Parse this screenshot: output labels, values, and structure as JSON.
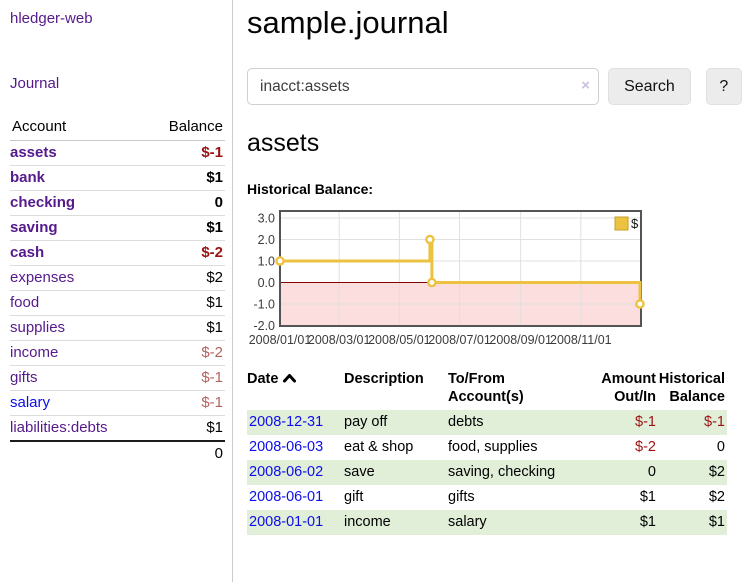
{
  "colors": {
    "link_purple": "#551a8b",
    "link_blue": "#0d0deb",
    "negative_strong": "#9c1212",
    "negative_muted": "#b56060",
    "row_stripe_green": "#e1efd9",
    "series_gold": "#edc240",
    "negative_region_pink": "#fcdede",
    "zero_line_red": "#800000",
    "chart_border": "#545454"
  },
  "sidebar": {
    "app_title": "hledger-web",
    "journal_link": "Journal",
    "accounts_table": {
      "headers": {
        "account": "Account",
        "balance": "Balance"
      },
      "rows": [
        {
          "name": "assets",
          "balance": "$-1",
          "depth": 1,
          "bold": true,
          "neg": true
        },
        {
          "name": "bank",
          "balance": "$1",
          "depth": 2,
          "bold": true,
          "neg": false
        },
        {
          "name": "checking",
          "balance": "0",
          "depth": 3,
          "bold": true,
          "neg": false
        },
        {
          "name": "saving",
          "balance": "$1",
          "depth": 3,
          "bold": true,
          "neg": false
        },
        {
          "name": "cash",
          "balance": "$-2",
          "depth": 2,
          "bold": true,
          "neg": true
        },
        {
          "name": "expenses",
          "balance": "$2",
          "depth": 1,
          "bold": false,
          "neg": false
        },
        {
          "name": "food",
          "balance": "$1",
          "depth": 2,
          "bold": false,
          "neg": false
        },
        {
          "name": "supplies",
          "balance": "$1",
          "depth": 2,
          "bold": false,
          "neg": false
        },
        {
          "name": "income",
          "balance": "$-2",
          "depth": 1,
          "bold": false,
          "neg": true
        },
        {
          "name": "gifts",
          "balance": "$-1",
          "depth": 2,
          "bold": false,
          "neg": true
        },
        {
          "name": "salary",
          "balance": "$-1",
          "depth": 2,
          "bold": false,
          "neg": true,
          "link_blue": true
        },
        {
          "name": "liabilities:debts",
          "balance": "$1",
          "depth": 1,
          "bold": false,
          "neg": false
        }
      ],
      "total": "0"
    }
  },
  "header": {
    "title": "sample.journal"
  },
  "search": {
    "query": "inacct:assets",
    "clear_icon": "×",
    "button_label": "Search",
    "help_label": "?"
  },
  "account_page": {
    "heading": "assets",
    "chart_label": "Historical Balance:"
  },
  "chart_data": {
    "type": "line",
    "step": true,
    "title": "Historical Balance",
    "series": [
      {
        "name": "$",
        "color": "#edc240",
        "points": [
          [
            "2008-01-01",
            1
          ],
          [
            "2008-06-01",
            2
          ],
          [
            "2008-06-03",
            0
          ],
          [
            "2008-12-31",
            -1
          ]
        ]
      }
    ],
    "x_range": [
      "2008-01-01",
      "2009-01-01"
    ],
    "x_ticks": [
      "2008/01/01",
      "2008/03/01",
      "2008/05/01",
      "2008/07/01",
      "2008/09/01",
      "2008/11/01"
    ],
    "y_ticks": [
      "3.0",
      "2.0",
      "1.0",
      "0.0",
      "-1.0",
      "-2.0"
    ],
    "ylim": [
      -2.0,
      3.0
    ],
    "grid": true,
    "legend": {
      "label": "$",
      "position": "top-right"
    }
  },
  "transactions": {
    "headers": [
      {
        "label": "Date",
        "sorted": "ascending"
      },
      {
        "label": "Description"
      },
      {
        "label": "To/From Account(s)"
      },
      {
        "label": "Amount Out/In"
      },
      {
        "label": "Historical Balance"
      }
    ],
    "rows": [
      {
        "date": "2008-12-31",
        "description": "pay off",
        "accounts": "debts",
        "amount": "$-1",
        "balance": "$-1"
      },
      {
        "date": "2008-06-03",
        "description": "eat & shop",
        "accounts": "food, supplies",
        "amount": "$-2",
        "balance": "0"
      },
      {
        "date": "2008-06-02",
        "description": "save",
        "accounts": "saving, checking",
        "amount": "0",
        "balance": "$2"
      },
      {
        "date": "2008-06-01",
        "description": "gift",
        "accounts": "gifts",
        "amount": "$1",
        "balance": "$2"
      },
      {
        "date": "2008-01-01",
        "description": "income",
        "accounts": "salary",
        "amount": "$1",
        "balance": "$1"
      }
    ]
  }
}
